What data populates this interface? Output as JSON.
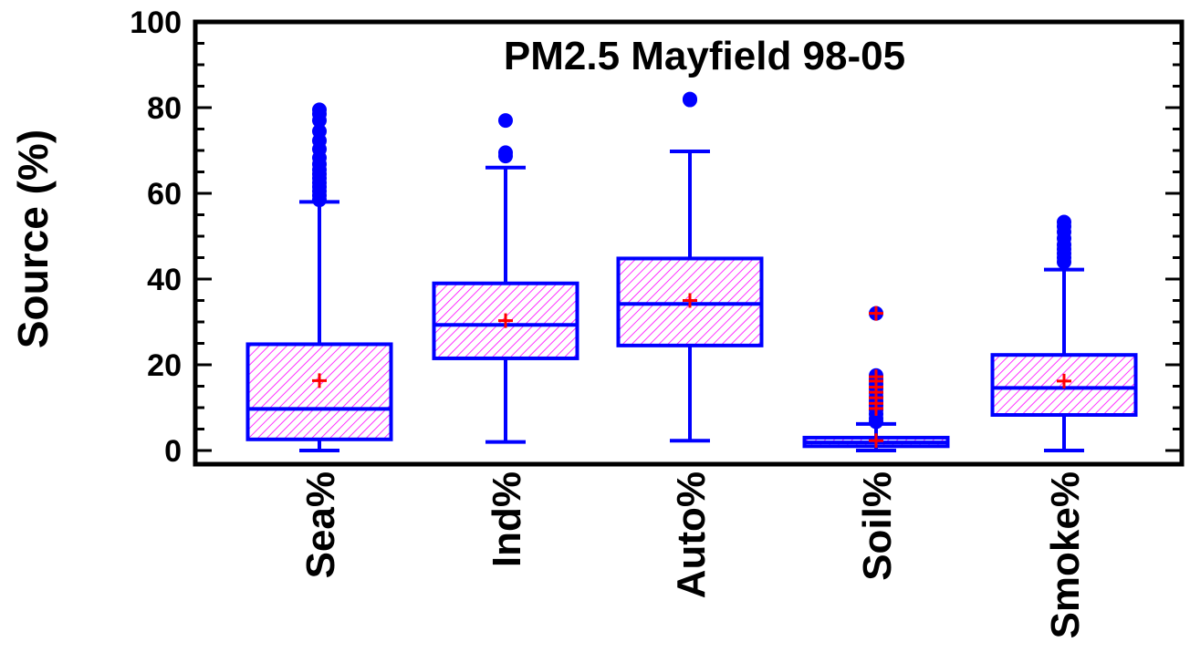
{
  "chart_data": {
    "type": "boxplot",
    "title": "PM2.5 Mayfield 98-05",
    "xlabel": "",
    "ylabel": "Source (%)",
    "ylim": [
      0,
      100
    ],
    "yticks": [
      "0",
      "20",
      "40",
      "60",
      "80",
      "100"
    ],
    "grid": false,
    "colors": {
      "box_edge": "#0000ff",
      "box_hatch": "#ff00ff",
      "whisker": "#0000ff",
      "outlier": "#0000ff",
      "mean_marker": "#ff0000",
      "frame": "#000000"
    },
    "categories": [
      "Sea%",
      "Ind%",
      "Auto%",
      "Soil%",
      "Smoke%"
    ],
    "boxes": [
      {
        "category": "Sea%",
        "whisker_low": 0,
        "q1": 2.6,
        "median": 9.7,
        "q3": 24.8,
        "whisker_high": 58.0,
        "mean": 16.3,
        "outliers": [
          58.5,
          59.5,
          60.5,
          61.5,
          62.5,
          63.5,
          64.5,
          65.5,
          66.8,
          68.3,
          70.3,
          72.3,
          74.5,
          77.0,
          78.5,
          79.5
        ]
      },
      {
        "category": "Ind%",
        "whisker_low": 2.0,
        "q1": 21.5,
        "median": 29.3,
        "q3": 39.0,
        "whisker_high": 66.0,
        "mean": 30.3,
        "outliers": [
          68.7,
          69.5,
          77.0
        ]
      },
      {
        "category": "Auto%",
        "whisker_low": 2.3,
        "q1": 24.5,
        "median": 34.2,
        "q3": 44.8,
        "whisker_high": 69.8,
        "mean": 35.0,
        "outliers": [
          81.8,
          82.0
        ]
      },
      {
        "category": "Soil%",
        "whisker_low": 0,
        "q1": 1.0,
        "median": 1.9,
        "q3": 3.0,
        "whisker_high": 6.2,
        "mean": 2.3,
        "outliers": [
          6.7,
          7.5,
          8.5,
          9.5,
          10.5,
          11.5,
          12.5,
          13.5,
          14.5,
          15.5,
          16.5,
          17.5,
          32.0
        ],
        "red_marks": [
          9.8,
          11.0,
          12.3,
          13.6,
          14.8,
          16.2,
          17.2,
          32.0
        ]
      },
      {
        "category": "Smoke%",
        "whisker_low": 0,
        "q1": 8.3,
        "median": 14.6,
        "q3": 22.3,
        "whisker_high": 42.2,
        "mean": 16.2,
        "outliers": [
          44.0,
          45.0,
          46.0,
          47.0,
          48.0,
          49.5,
          51.0,
          52.3,
          53.3
        ]
      }
    ]
  }
}
